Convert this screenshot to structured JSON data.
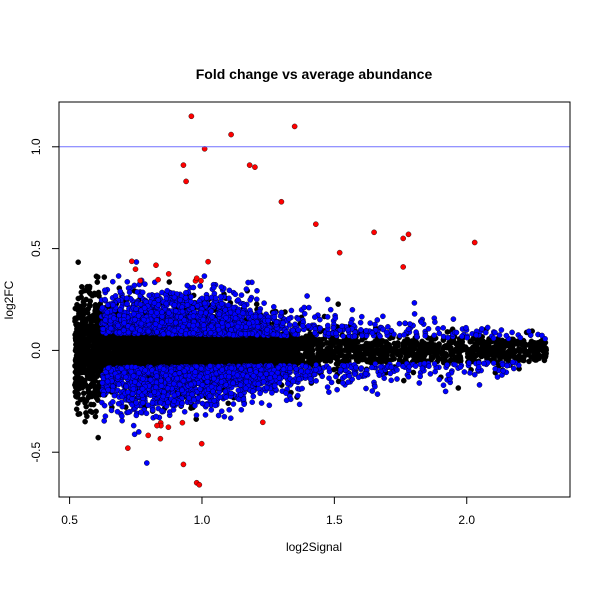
{
  "chart_data": {
    "type": "scatter",
    "title": "Fold change vs average abundance",
    "xlabel": "log2Signal",
    "ylabel": "log2FC",
    "xlim": [
      0.46,
      2.39
    ],
    "ylim": [
      -0.72,
      1.22
    ],
    "xticks": [
      0.5,
      1.0,
      1.5,
      2.0
    ],
    "xtick_labels": [
      "0.5",
      "1.0",
      "1.5",
      "2.0"
    ],
    "yticks": [
      -0.5,
      0.0,
      0.5,
      1.0
    ],
    "ytick_labels": [
      "-0.5",
      "0.0",
      "0.5",
      "1.0"
    ],
    "hline": {
      "y": 1.0,
      "color": "#7070ff"
    },
    "grid": false,
    "colors": {
      "not_significant": "#000000",
      "significant": "#0000ff",
      "large_change": "#ff0000"
    },
    "cloud": {
      "n_points": 9000,
      "x_range": [
        0.52,
        2.3
      ],
      "x_mode": 0.95,
      "y_center": 0.0,
      "y_sd_at_low_signal": 0.14,
      "y_sd_at_high_signal": 0.04,
      "seed": 7
    },
    "highlighted_points": [
      {
        "x": 0.96,
        "y": 1.15
      },
      {
        "x": 1.11,
        "y": 1.06
      },
      {
        "x": 1.35,
        "y": 1.1
      },
      {
        "x": 1.01,
        "y": 0.99
      },
      {
        "x": 0.93,
        "y": 0.91
      },
      {
        "x": 1.18,
        "y": 0.91
      },
      {
        "x": 1.2,
        "y": 0.9
      },
      {
        "x": 0.94,
        "y": 0.83
      },
      {
        "x": 1.78,
        "y": 0.57
      },
      {
        "x": 1.76,
        "y": 0.55
      },
      {
        "x": 2.03,
        "y": 0.53
      },
      {
        "x": 1.43,
        "y": 0.62
      },
      {
        "x": 1.65,
        "y": 0.58
      },
      {
        "x": 1.52,
        "y": 0.48
      },
      {
        "x": 1.3,
        "y": 0.73
      },
      {
        "x": 0.98,
        "y": -0.65
      },
      {
        "x": 0.99,
        "y": -0.66
      },
      {
        "x": 0.93,
        "y": -0.56
      },
      {
        "x": 0.72,
        "y": -0.48
      },
      {
        "x": 1.76,
        "y": 0.41
      }
    ]
  }
}
